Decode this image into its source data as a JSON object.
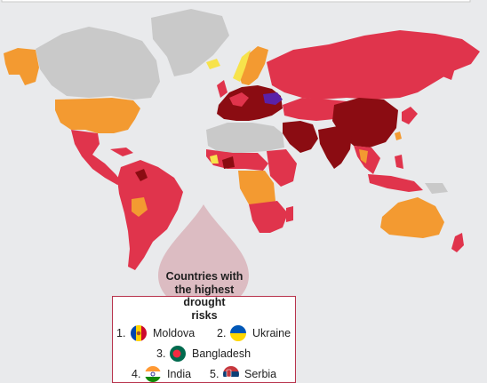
{
  "legend": {
    "title_lines": [
      "Countries with",
      "the highest",
      "drought",
      "risks"
    ],
    "items": [
      {
        "rank": "1.",
        "country": "Moldova",
        "flag_colors": [
          "#0046ae",
          "#ffd200",
          "#cc092f"
        ]
      },
      {
        "rank": "2.",
        "country": "Ukraine",
        "flag_colors": [
          "#0057b7",
          "#ffd700"
        ]
      },
      {
        "rank": "3.",
        "country": "Bangladesh",
        "flag_colors": [
          "#006a4e",
          "#f42a41"
        ]
      },
      {
        "rank": "4.",
        "country": "India",
        "flag_colors": [
          "#ff9933",
          "#ffffff",
          "#138808"
        ]
      },
      {
        "rank": "5.",
        "country": "Serbia",
        "flag_colors": [
          "#c6363c",
          "#0c4076",
          "#ffffff"
        ]
      }
    ]
  },
  "map_colors": {
    "no_data": "#c9c9c9",
    "low": "#f7e34b",
    "medium": "#f39a31",
    "high": "#e0344c",
    "very_high": "#8b0c12",
    "top": "#5a21a8",
    "ocean": "#e9eaec"
  }
}
